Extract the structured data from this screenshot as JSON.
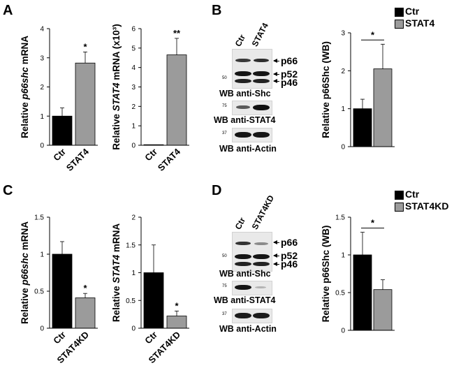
{
  "panels": {
    "A": "A",
    "B": "B",
    "C": "C",
    "D": "D"
  },
  "colors": {
    "ctr": "#000000",
    "treatment": "#9b9b9b"
  },
  "legend_B": [
    {
      "label": "Ctr",
      "color": "#000000"
    },
    {
      "label": "STAT4",
      "color": "#9b9b9b"
    }
  ],
  "legend_D": [
    {
      "label": "Ctr",
      "color": "#000000"
    },
    {
      "label": "STAT4KD",
      "color": "#9b9b9b"
    }
  ],
  "blot_B": {
    "lanes": [
      "Ctr",
      "STAT4"
    ],
    "labels": {
      "p66": "p66",
      "p52": "p52",
      "p46": "p46"
    },
    "markers": {
      "shc": "50",
      "stat4": "75",
      "actin": "37"
    },
    "captions": {
      "shc": "WB anti-Shc",
      "stat4": "WB anti-STAT4",
      "actin": "WB anti-Actin"
    }
  },
  "blot_D": {
    "lanes": [
      "Ctr",
      "STAT4KD"
    ],
    "labels": {
      "p66": "p66",
      "p52": "p52",
      "p46": "p46"
    },
    "markers": {
      "shc": "50",
      "stat4": "75",
      "actin": "37"
    },
    "captions": {
      "shc": "WB anti-Shc",
      "stat4": "WB anti-STAT4",
      "actin": "WB anti-Actin"
    }
  },
  "chart_data": [
    {
      "id": "A1",
      "type": "bar",
      "ylabel_pre": "Relative ",
      "ylabel_italic": "p66shc",
      "ylabel_post": " mRNA",
      "categories": [
        "Ctr",
        "STAT4"
      ],
      "values": [
        1.0,
        2.82
      ],
      "errors": [
        0.28,
        0.38
      ],
      "significance": [
        "",
        "*"
      ],
      "ylim": [
        0,
        4
      ],
      "yticks": [
        0,
        1,
        2,
        3,
        4
      ],
      "ytick_labels": [
        "0",
        "1",
        "2",
        "3",
        "4"
      ]
    },
    {
      "id": "A2",
      "type": "bar",
      "ylabel_pre": "Relative ",
      "ylabel_italic": "STAT4",
      "ylabel_post": " mRNA (x10³)",
      "categories": [
        "Ctr",
        "STAT4"
      ],
      "values": [
        0.002,
        4.65
      ],
      "errors": [
        0,
        0.85
      ],
      "significance": [
        "",
        "**"
      ],
      "ylim": [
        0,
        6
      ],
      "yticks": [
        0,
        1,
        2,
        3,
        4,
        5,
        6
      ],
      "ytick_labels": [
        "0",
        "1",
        "2",
        "3",
        "4",
        "5",
        "6"
      ]
    },
    {
      "id": "B1",
      "type": "bar",
      "ylabel_pre": "Relative p66Shc (WB)",
      "ylabel_italic": "",
      "ylabel_post": "",
      "categories": [
        "Ctr",
        "STAT4"
      ],
      "show_category_labels": false,
      "values": [
        1.0,
        2.05
      ],
      "errors": [
        0.25,
        0.65
      ],
      "significance_bracket": "*",
      "ylim": [
        0,
        3
      ],
      "yticks": [
        0,
        1,
        2,
        3
      ],
      "ytick_labels": [
        "0",
        "1",
        "2",
        "3"
      ]
    },
    {
      "id": "C1",
      "type": "bar",
      "ylabel_pre": "Relative ",
      "ylabel_italic": "p66shc",
      "ylabel_post": " mRNA",
      "categories": [
        "Ctr",
        "STAT4KD"
      ],
      "values": [
        1.0,
        0.41
      ],
      "errors": [
        0.17,
        0.06
      ],
      "significance": [
        "",
        "*"
      ],
      "ylim": [
        0,
        1.5
      ],
      "yticks": [
        0,
        0.5,
        1,
        1.5
      ],
      "ytick_labels": [
        "0",
        "0.5",
        "1",
        "1.5"
      ]
    },
    {
      "id": "C2",
      "type": "bar",
      "ylabel_pre": "Relative ",
      "ylabel_italic": "STAT4",
      "ylabel_post": " mRNA",
      "categories": [
        "Ctr",
        "STAT4KD"
      ],
      "values": [
        1.0,
        0.22
      ],
      "errors": [
        0.5,
        0.09
      ],
      "significance": [
        "",
        "*"
      ],
      "ylim": [
        0,
        2
      ],
      "yticks": [
        0,
        0.5,
        1,
        1.5,
        2
      ],
      "ytick_labels": [
        "0",
        "0.5",
        "1",
        "1.5",
        "2"
      ]
    },
    {
      "id": "D1",
      "type": "bar",
      "ylabel_pre": "Relative p66Shc (WB)",
      "ylabel_italic": "",
      "ylabel_post": "",
      "categories": [
        "Ctr",
        "STAT4KD"
      ],
      "show_category_labels": false,
      "values": [
        1.0,
        0.54
      ],
      "errors": [
        0.3,
        0.13
      ],
      "significance_bracket": "*",
      "ylim": [
        0,
        1.5
      ],
      "yticks": [
        0,
        0.5,
        1,
        1.5
      ],
      "ytick_labels": [
        "0",
        "0.5",
        "1",
        "1.5"
      ]
    }
  ]
}
